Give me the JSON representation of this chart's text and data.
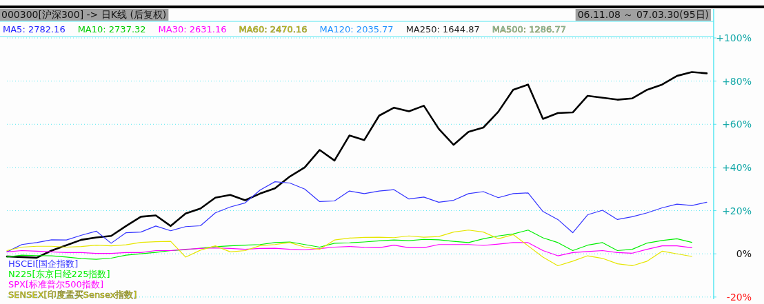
{
  "chart_data": {
    "type": "line",
    "title": "000300[沪深300] -> 日K线 (后复权)",
    "subtitle": "06.11.08 ～ 07.03.30(95日)",
    "annotations": [
      "MA5: 2782.16",
      "MA10: 2737.32",
      "MA30: 2631.16",
      "MA60: 2470.16",
      "MA120: 2035.77",
      "MA250: 1644.87",
      "MA500: 1286.77"
    ],
    "categories": [
      null,
      null,
      null,
      null,
      null,
      null,
      null,
      null,
      null,
      null,
      null,
      null,
      null,
      null,
      null,
      null,
      null,
      null,
      null,
      null,
      null,
      null,
      null,
      null,
      null,
      null,
      null,
      null,
      null,
      null,
      null,
      null,
      null,
      null,
      null,
      null,
      null,
      null,
      null,
      null,
      null,
      null,
      null,
      null,
      null,
      null,
      null,
      null
    ],
    "ylim": [
      -21,
      100
    ],
    "yticks": [
      {
        "value": 100,
        "label": "+100%"
      },
      {
        "value": 80,
        "label": "+80%"
      },
      {
        "value": 60,
        "label": "+60%"
      },
      {
        "value": 40,
        "label": "+40%"
      },
      {
        "value": 20,
        "label": "+20%"
      },
      {
        "value": 0,
        "label": "0%"
      },
      {
        "value": -20,
        "label": "-20%"
      }
    ],
    "tick_labels": "y",
    "grid": "y",
    "series": [
      {
        "color": "#000000",
        "values": [
          -1.2,
          -1.5,
          -1.8,
          1.5,
          4,
          6.5,
          7.6,
          8.3,
          12.9,
          17.2,
          17.8,
          12.9,
          18.7,
          21,
          26,
          27.3,
          24.8,
          27.9,
          30.3,
          35.8,
          40,
          48.1,
          43.2,
          54.8,
          52.7,
          64,
          67.7,
          66,
          68.6,
          57.9,
          50.5,
          56.5,
          58.5,
          65.8,
          76,
          78.4,
          62.5,
          65.2,
          65.5,
          73.2,
          72.3,
          71.4,
          72,
          76,
          78.4,
          82.4,
          84.2,
          83.6
        ]
      },
      {
        "name": "HSCEI[国企指数]",
        "color": "#3333ff",
        "values": [
          0.9,
          4.3,
          5.2,
          6.5,
          6.4,
          8.6,
          10.5,
          4.9,
          9.8,
          10.1,
          12.9,
          10.7,
          12.6,
          13,
          19,
          21.7,
          23.6,
          29.5,
          33.4,
          32.8,
          30,
          24.2,
          24.5,
          29.1,
          27.9,
          29.1,
          29.7,
          25.4,
          26.3,
          23.9,
          24.8,
          27.9,
          28.8,
          26,
          27.9,
          28.2,
          19.6,
          15.9,
          9.8,
          18.1,
          20.2,
          15.9,
          17.2,
          19,
          21.3,
          23,
          22.4,
          23.9
        ]
      },
      {
        "name": "N225[东京日经225指数]",
        "color": "#00ee00",
        "values": [
          -1.5,
          -0.6,
          -0.8,
          -0.9,
          -1.5,
          -2.2,
          -2.5,
          -2,
          -0.6,
          0,
          0.7,
          1.5,
          1.9,
          2.6,
          3.3,
          3.7,
          4,
          4.3,
          5.2,
          5.5,
          4.3,
          3.1,
          4.9,
          5.1,
          5.5,
          6,
          6.4,
          6.1,
          6.7,
          6.5,
          5.8,
          5.2,
          7,
          8.3,
          9.2,
          11,
          7.4,
          5.2,
          1.5,
          4,
          5.2,
          1.5,
          2.1,
          5,
          6.2,
          7,
          5.3,
          null
        ]
      },
      {
        "name": "SPX[标准普尔500指数]",
        "color": "#ff00ff",
        "values": [
          0.9,
          1.5,
          1.2,
          0.9,
          0.6,
          0.6,
          0.2,
          0.2,
          0.6,
          0.6,
          1.5,
          1.5,
          2.1,
          2.5,
          2.7,
          2.5,
          2.1,
          2.5,
          2.6,
          2.1,
          1.9,
          2.4,
          3.1,
          3.4,
          3,
          2.8,
          4,
          2.8,
          2.8,
          4.3,
          4.3,
          4.3,
          3.9,
          4.5,
          5.2,
          5.2,
          1.5,
          -0.9,
          0.6,
          1.1,
          1.5,
          0.6,
          0.3,
          2.1,
          3.7,
          3.7,
          2.8,
          null
        ]
      },
      {
        "name": "SENSEX[印度孟买Sensex指数]",
        "color": "#e6e600",
        "values": [
          1.5,
          3.1,
          3.5,
          3.5,
          3.1,
          3.4,
          4,
          3.7,
          4.2,
          5.3,
          5.6,
          5.8,
          -1.5,
          1.7,
          3.7,
          0.9,
          1.5,
          3.8,
          4.3,
          5.2,
          3.1,
          2.1,
          6.4,
          7.3,
          7.6,
          7.7,
          7.5,
          8.3,
          7.7,
          8,
          10.1,
          11,
          10.1,
          7,
          8.9,
          3.7,
          -1.5,
          -5.5,
          -3.4,
          -0.9,
          -2.1,
          -4.6,
          -5.5,
          -3.4,
          1.2,
          0,
          -1.2,
          null
        ]
      }
    ]
  }
}
